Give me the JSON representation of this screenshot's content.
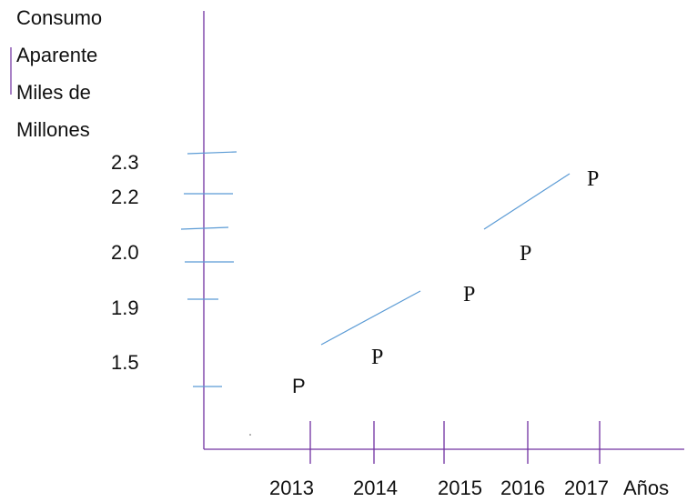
{
  "chart_data": {
    "type": "scatter",
    "ylabel_lines": [
      "Consumo",
      "Aparente",
      "Miles de",
      "Millones"
    ],
    "xlabel": "Años",
    "x_categories": [
      "2013",
      "2014",
      "2015",
      "2016",
      "2017"
    ],
    "y_tick_labels": [
      "2.3",
      "2.2",
      "2.0",
      "1.9",
      "1.5"
    ],
    "point_marker": "P",
    "points": [
      {
        "x": "2013",
        "marker": "P"
      },
      {
        "x": "2014",
        "marker": "P"
      },
      {
        "x": "2015",
        "marker": "P"
      },
      {
        "x": "2016",
        "marker": "P"
      },
      {
        "x": "2017",
        "marker": "P"
      }
    ],
    "grid": false,
    "legend": "none"
  },
  "colors": {
    "axis": "#7030a0",
    "stroke_blue": "#5b9bd5",
    "text": "#111111"
  }
}
